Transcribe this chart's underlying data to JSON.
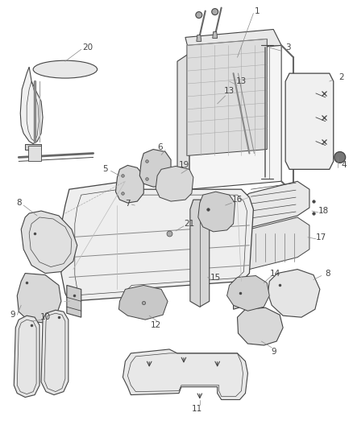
{
  "bg_color": "#ffffff",
  "line_color": "#444444",
  "label_color": "#444444",
  "fig_width": 4.38,
  "fig_height": 5.33,
  "dpi": 100,
  "label_fs": 7.5
}
